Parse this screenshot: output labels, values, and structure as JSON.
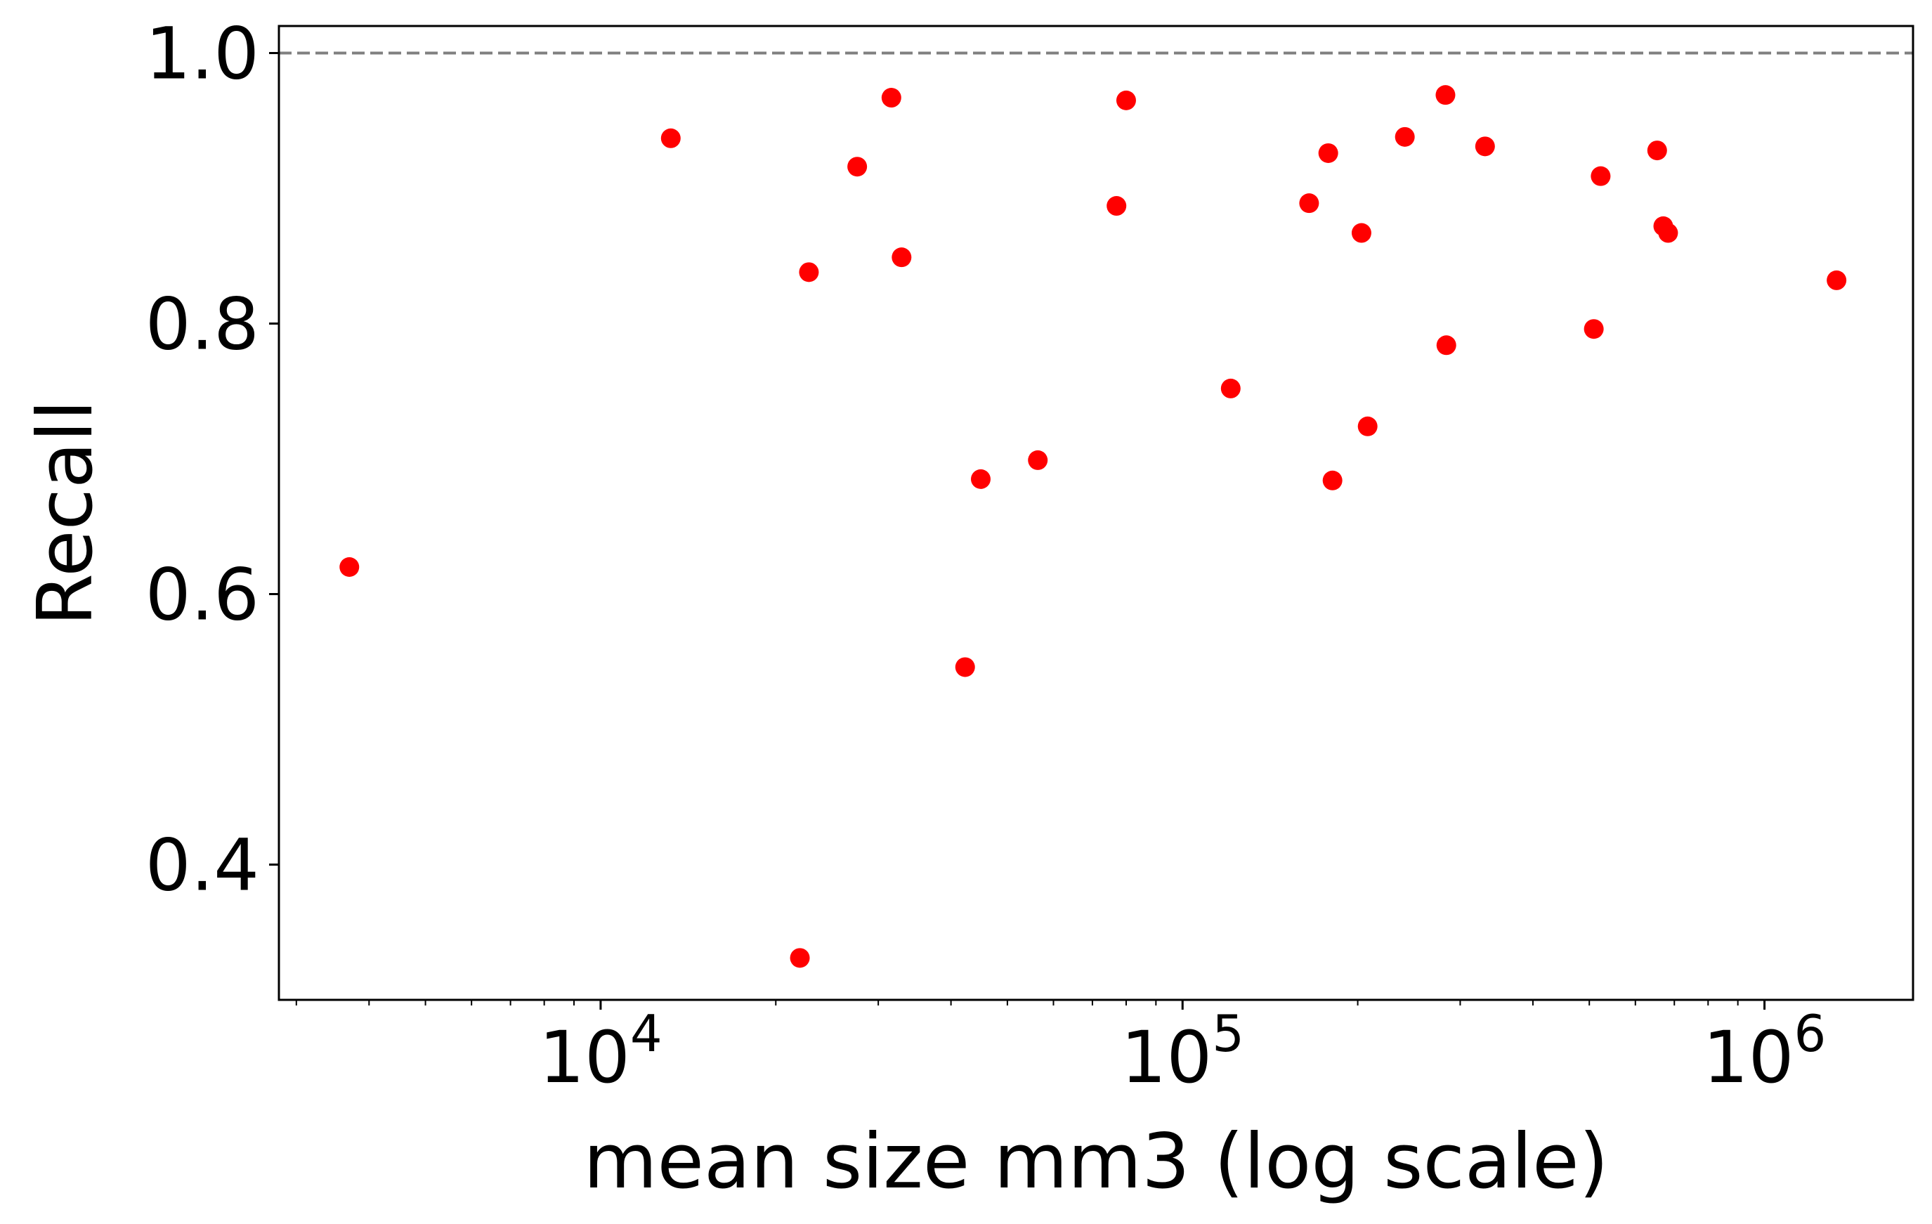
{
  "chart_data": {
    "type": "scatter",
    "xlabel": "mean size mm3 (log scale)",
    "ylabel": "Recall",
    "xscale": "log",
    "xlim": [
      2800,
      1800000
    ],
    "ylim": [
      0.3,
      1.02
    ],
    "grid": false,
    "legend": "none",
    "reference_line": {
      "y": 1.0,
      "style": "dashed",
      "color": "#808080"
    },
    "marker_color": "#ff0000",
    "x_ticks": [
      {
        "value": 10000,
        "base": "10",
        "exponent": "4"
      },
      {
        "value": 100000,
        "base": "10",
        "exponent": "5"
      },
      {
        "value": 1000000,
        "base": "10",
        "exponent": "6"
      }
    ],
    "y_ticks": [
      {
        "value": 0.4,
        "label": "0.4"
      },
      {
        "value": 0.6,
        "label": "0.6"
      },
      {
        "value": 0.8,
        "label": "0.8"
      },
      {
        "value": 1.0,
        "label": "1.0"
      }
    ],
    "points": [
      {
        "x": 3700,
        "y": 0.62
      },
      {
        "x": 13200,
        "y": 0.937
      },
      {
        "x": 22000,
        "y": 0.331
      },
      {
        "x": 22800,
        "y": 0.838
      },
      {
        "x": 27600,
        "y": 0.916
      },
      {
        "x": 31600,
        "y": 0.967
      },
      {
        "x": 32900,
        "y": 0.849
      },
      {
        "x": 42300,
        "y": 0.546
      },
      {
        "x": 45000,
        "y": 0.685
      },
      {
        "x": 56400,
        "y": 0.699
      },
      {
        "x": 77000,
        "y": 0.887
      },
      {
        "x": 80000,
        "y": 0.965
      },
      {
        "x": 121000,
        "y": 0.752
      },
      {
        "x": 165000,
        "y": 0.889
      },
      {
        "x": 178000,
        "y": 0.926
      },
      {
        "x": 181000,
        "y": 0.684
      },
      {
        "x": 203000,
        "y": 0.867
      },
      {
        "x": 208000,
        "y": 0.724
      },
      {
        "x": 241000,
        "y": 0.938
      },
      {
        "x": 283000,
        "y": 0.969
      },
      {
        "x": 284000,
        "y": 0.784
      },
      {
        "x": 331000,
        "y": 0.931
      },
      {
        "x": 509000,
        "y": 0.796
      },
      {
        "x": 523000,
        "y": 0.909
      },
      {
        "x": 654000,
        "y": 0.928
      },
      {
        "x": 670000,
        "y": 0.872
      },
      {
        "x": 683000,
        "y": 0.867
      },
      {
        "x": 1330000,
        "y": 0.832
      }
    ]
  }
}
